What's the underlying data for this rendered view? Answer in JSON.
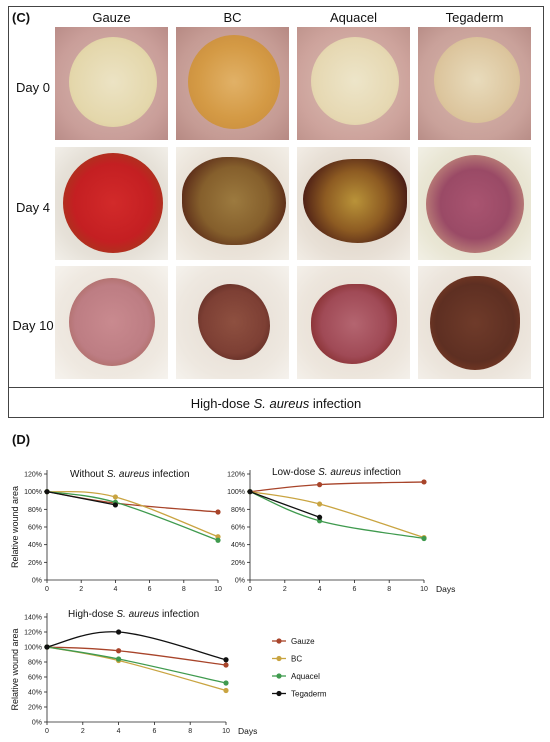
{
  "panel_c": {
    "label": "(C)",
    "columns": [
      "Gauze",
      "BC",
      "Aquacel",
      "Tegaderm"
    ],
    "rows": [
      "Day 0",
      "Day 4",
      "Day 10"
    ],
    "caption_prefix": "High-dose ",
    "caption_italic": "S. aureus",
    "caption_suffix": " infection"
  },
  "panel_d": {
    "label": "(D)",
    "ylabel": "Relative wound area",
    "xlabel": "Days",
    "legend": [
      "Gauze",
      "BC",
      "Aquacel",
      "Tegaderm"
    ]
  },
  "colors": {
    "Gauze": "#a8442a",
    "BC": "#c9a441",
    "Aquacel": "#3f9a4e",
    "Tegaderm": "#111111"
  },
  "chart_data": [
    {
      "type": "line",
      "title_prefix": "Without ",
      "title_italic": "S. aureus",
      "title_suffix": " infection",
      "ylabel": "Relative wound area",
      "xlabel": "",
      "x": [
        0,
        4,
        10
      ],
      "xticks": [
        0,
        2,
        4,
        6,
        8,
        10
      ],
      "ylim": [
        0,
        120
      ],
      "yticks": [
        0,
        20,
        40,
        60,
        80,
        100,
        120
      ],
      "series": [
        {
          "name": "Gauze",
          "values": [
            100,
            87,
            77
          ]
        },
        {
          "name": "BC",
          "values": [
            100,
            94,
            49
          ]
        },
        {
          "name": "Aquacel",
          "values": [
            100,
            88,
            45
          ]
        },
        {
          "name": "Tegaderm",
          "values": [
            100,
            85,
            null
          ]
        }
      ]
    },
    {
      "type": "line",
      "title_prefix": "Low-dose ",
      "title_italic": "S. aureus",
      "title_suffix": " infection",
      "ylabel": "",
      "xlabel": "Days",
      "x": [
        0,
        4,
        10
      ],
      "xticks": [
        0,
        2,
        4,
        6,
        8,
        10
      ],
      "ylim": [
        0,
        120
      ],
      "yticks": [
        0,
        20,
        40,
        60,
        80,
        100,
        120
      ],
      "series": [
        {
          "name": "Gauze",
          "values": [
            100,
            108,
            111
          ]
        },
        {
          "name": "BC",
          "values": [
            100,
            86,
            48
          ]
        },
        {
          "name": "Aquacel",
          "values": [
            100,
            67,
            47
          ]
        },
        {
          "name": "Tegaderm",
          "values": [
            100,
            71,
            null
          ]
        }
      ]
    },
    {
      "type": "line",
      "title_prefix": "High-dose ",
      "title_italic": "S. aureus",
      "title_suffix": " infection",
      "ylabel": "Relative wound area",
      "xlabel": "Days",
      "x": [
        0,
        4,
        10
      ],
      "xticks": [
        0,
        2,
        4,
        6,
        8,
        10
      ],
      "ylim": [
        0,
        140
      ],
      "yticks": [
        0,
        20,
        40,
        60,
        80,
        100,
        120,
        140
      ],
      "series": [
        {
          "name": "Gauze",
          "values": [
            100,
            95,
            76
          ]
        },
        {
          "name": "BC",
          "values": [
            100,
            82,
            42
          ]
        },
        {
          "name": "Aquacel",
          "values": [
            100,
            84,
            52
          ]
        },
        {
          "name": "Tegaderm",
          "values": [
            100,
            120,
            83
          ]
        }
      ]
    }
  ]
}
